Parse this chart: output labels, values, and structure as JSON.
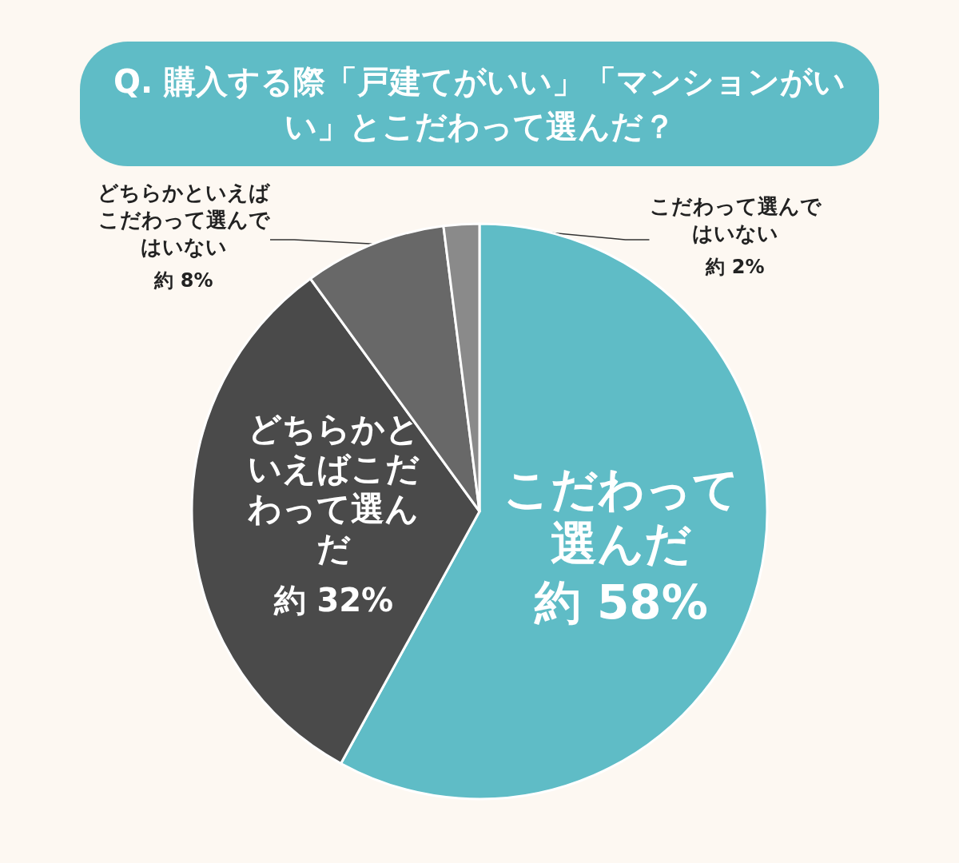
{
  "chart_data": {
    "type": "pie",
    "title": "Q. 購入する際「戸建てがいい」「マンションがいい」とこだわって選んだ？",
    "categories": [
      "こだわって選んだ",
      "どちらかといえばこだわって選んだ",
      "どちらかといえばこだわって選んではいない",
      "こだわって選んではいない"
    ],
    "values": [
      58,
      32,
      8,
      2
    ],
    "value_labels": [
      "約 58%",
      "約 32%",
      "約 8%",
      "約 2%"
    ],
    "colors": [
      "#5fbcc6",
      "#4a4a4a",
      "#686868",
      "#8a8a8a"
    ]
  }
}
